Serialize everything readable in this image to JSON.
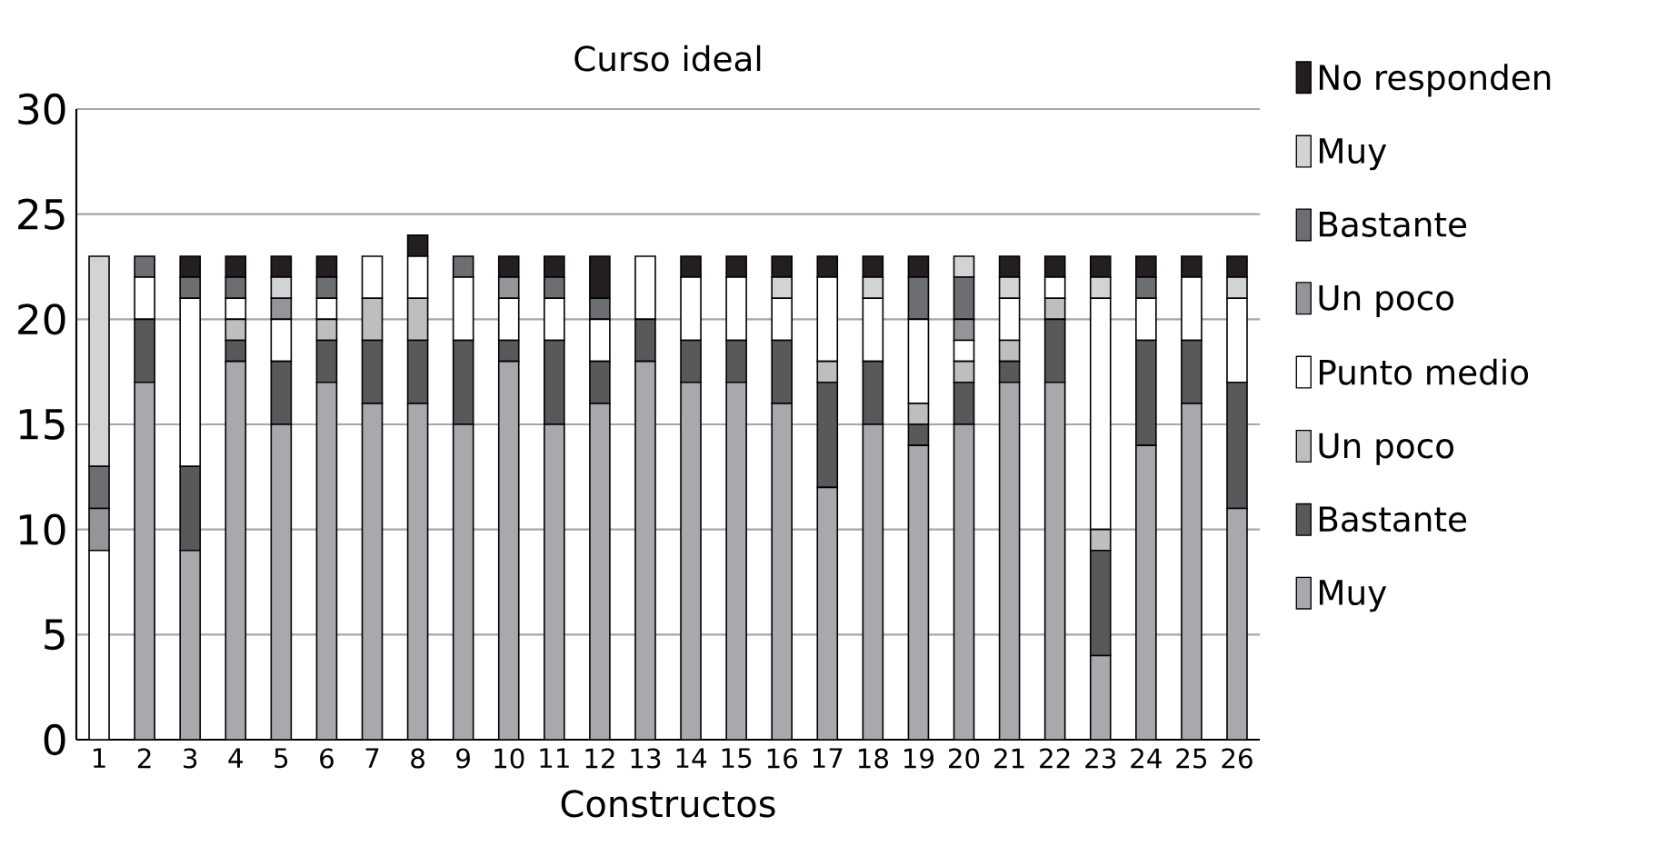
{
  "chart_data": {
    "type": "bar",
    "title": "Curso ideal",
    "xlabel": "Constructos",
    "categories": [
      "1",
      "2",
      "3",
      "4",
      "5",
      "6",
      "7",
      "8",
      "9",
      "10",
      "11",
      "12",
      "13",
      "14",
      "15",
      "16",
      "17",
      "18",
      "19",
      "20",
      "21",
      "22",
      "23",
      "24",
      "25",
      "26"
    ],
    "stacked": true,
    "ylim": [
      0,
      30
    ],
    "yticks": [
      0,
      5,
      10,
      15,
      20,
      25,
      30
    ],
    "grid": "y",
    "legend": "right",
    "series": [
      {
        "name": "Muy",
        "color": "#a7a9ac",
        "values": [
          0,
          17,
          9,
          18,
          15,
          17,
          16,
          16,
          15,
          18,
          15,
          16,
          18,
          17,
          17,
          16,
          12,
          15,
          14,
          15,
          17,
          17,
          4,
          14,
          16,
          11
        ]
      },
      {
        "name": "Bastante",
        "color": "#58595b",
        "values": [
          0,
          3,
          4,
          1,
          3,
          2,
          3,
          3,
          4,
          1,
          4,
          2,
          2,
          2,
          2,
          3,
          5,
          3,
          1,
          2,
          1,
          3,
          5,
          5,
          3,
          6
        ]
      },
      {
        "name": "Un poco",
        "color": "#bcbec0",
        "values": [
          0,
          0,
          0,
          1,
          0,
          1,
          2,
          2,
          0,
          0,
          0,
          0,
          0,
          0,
          0,
          0,
          1,
          0,
          1,
          1,
          1,
          1,
          1,
          0,
          0,
          0
        ]
      },
      {
        "name": "Punto medio",
        "color": "#ffffff",
        "values": [
          9,
          2,
          8,
          1,
          2,
          1,
          2,
          2,
          3,
          2,
          2,
          2,
          3,
          3,
          3,
          2,
          4,
          3,
          4,
          1,
          2,
          1,
          11,
          2,
          3,
          4
        ]
      },
      {
        "name": "Un poco",
        "color": "#939598",
        "values": [
          2,
          0,
          0,
          0,
          1,
          0,
          0,
          0,
          0,
          1,
          0,
          0,
          0,
          0,
          0,
          0,
          0,
          0,
          0,
          1,
          0,
          0,
          0,
          0,
          0,
          0
        ]
      },
      {
        "name": "Bastante",
        "color": "#6d6e71",
        "values": [
          2,
          1,
          1,
          1,
          0,
          1,
          0,
          0,
          1,
          0,
          1,
          1,
          0,
          0,
          0,
          0,
          0,
          0,
          2,
          2,
          0,
          0,
          0,
          1,
          0,
          0
        ]
      },
      {
        "name": "Muy",
        "color": "#d1d3d4",
        "values": [
          10,
          0,
          0,
          0,
          1,
          0,
          0,
          0,
          0,
          0,
          0,
          0,
          0,
          0,
          0,
          1,
          0,
          1,
          0,
          1,
          1,
          0,
          1,
          0,
          0,
          1
        ]
      },
      {
        "name": "No responden",
        "color": "#231f20",
        "values": [
          0,
          0,
          1,
          1,
          1,
          1,
          0,
          1,
          0,
          1,
          1,
          2,
          0,
          1,
          1,
          1,
          1,
          1,
          1,
          0,
          1,
          1,
          1,
          1,
          1,
          1
        ]
      }
    ]
  }
}
